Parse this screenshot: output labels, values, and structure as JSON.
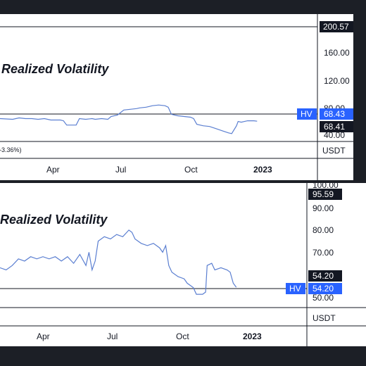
{
  "colors": {
    "line": "#5b7fd1",
    "badge_blue": "#2962ff",
    "badge_black": "#131722",
    "grid": "#131722"
  },
  "chart_data": [
    {
      "type": "line",
      "title": "Realized Volatility",
      "subtitle": "-3.36%)",
      "x_tick_labels": [
        "Apr",
        "Jul",
        "Oct",
        "2023"
      ],
      "y_tick_labels": [
        "160.00",
        "120.00",
        "80.00",
        "40.00"
      ],
      "ylim": [
        40,
        200.57
      ],
      "price_axis_unit": "USDT",
      "badges": [
        {
          "label": "",
          "value": "200.57",
          "style": "black"
        },
        {
          "label": "HV",
          "value": "68.43",
          "style": "blue"
        },
        {
          "label": "",
          "value": "68.41",
          "style": "black"
        }
      ],
      "series": [
        {
          "values": [
            [
              0.0,
              72
            ],
            [
              0.04,
              71
            ],
            [
              0.06,
              73
            ],
            [
              0.08,
              72
            ],
            [
              0.1,
              72
            ],
            [
              0.12,
              71
            ],
            [
              0.14,
              72
            ],
            [
              0.16,
              70
            ],
            [
              0.19,
              70
            ],
            [
              0.2,
              69
            ],
            [
              0.21,
              63
            ],
            [
              0.24,
              63
            ],
            [
              0.25,
              72
            ],
            [
              0.27,
              71
            ],
            [
              0.29,
              72
            ],
            [
              0.3,
              71
            ],
            [
              0.32,
              72
            ],
            [
              0.34,
              71
            ],
            [
              0.35,
              75
            ],
            [
              0.37,
              77
            ],
            [
              0.39,
              84
            ],
            [
              0.41,
              85
            ],
            [
              0.43,
              86
            ],
            [
              0.44,
              87
            ],
            [
              0.46,
              88
            ],
            [
              0.47,
              89
            ],
            [
              0.48,
              90
            ],
            [
              0.5,
              91
            ],
            [
              0.52,
              90
            ],
            [
              0.53,
              88
            ],
            [
              0.54,
              78
            ],
            [
              0.56,
              76
            ],
            [
              0.58,
              75
            ],
            [
              0.6,
              74
            ],
            [
              0.61,
              72
            ],
            [
              0.62,
              64
            ],
            [
              0.64,
              62
            ],
            [
              0.66,
              61
            ],
            [
              0.68,
              58
            ],
            [
              0.7,
              55
            ],
            [
              0.72,
              52
            ],
            [
              0.73,
              51
            ],
            [
              0.745,
              62
            ],
            [
              0.75,
              68
            ],
            [
              0.76,
              67
            ],
            [
              0.77,
              68
            ],
            [
              0.78,
              69
            ],
            [
              0.8,
              69
            ],
            [
              0.81,
              68.4
            ]
          ]
        }
      ]
    },
    {
      "type": "line",
      "title": "Realized Volatility",
      "x_tick_labels": [
        "Apr",
        "Jul",
        "Oct",
        "2023"
      ],
      "y_tick_labels": [
        "100.00",
        "90.00",
        "80.00",
        "70.00",
        "50.00"
      ],
      "ylim": [
        45,
        100
      ],
      "price_axis_unit": "USDT",
      "badges": [
        {
          "label": "",
          "value": "95.59",
          "style": "black"
        },
        {
          "label": "",
          "value": "54.20",
          "style": "black"
        },
        {
          "label": "HV",
          "value": "54.20",
          "style": "blue"
        }
      ],
      "series": [
        {
          "values": [
            [
              0.0,
              63
            ],
            [
              0.02,
              62
            ],
            [
              0.04,
              64
            ],
            [
              0.06,
              67
            ],
            [
              0.08,
              66
            ],
            [
              0.1,
              68
            ],
            [
              0.12,
              67
            ],
            [
              0.14,
              68
            ],
            [
              0.16,
              67
            ],
            [
              0.18,
              68
            ],
            [
              0.2,
              66
            ],
            [
              0.22,
              68
            ],
            [
              0.24,
              65
            ],
            [
              0.26,
              69
            ],
            [
              0.28,
              64
            ],
            [
              0.29,
              70
            ],
            [
              0.3,
              62
            ],
            [
              0.31,
              66
            ],
            [
              0.32,
              75
            ],
            [
              0.34,
              77
            ],
            [
              0.36,
              76
            ],
            [
              0.38,
              78
            ],
            [
              0.4,
              77
            ],
            [
              0.42,
              80
            ],
            [
              0.43,
              79
            ],
            [
              0.44,
              76
            ],
            [
              0.46,
              74
            ],
            [
              0.48,
              73
            ],
            [
              0.5,
              74
            ],
            [
              0.52,
              72
            ],
            [
              0.53,
              70
            ],
            [
              0.54,
              73
            ],
            [
              0.55,
              64
            ],
            [
              0.56,
              61
            ],
            [
              0.58,
              59
            ],
            [
              0.6,
              58
            ],
            [
              0.61,
              56
            ],
            [
              0.63,
              54
            ],
            [
              0.64,
              51
            ],
            [
              0.66,
              51
            ],
            [
              0.67,
              52
            ],
            [
              0.675,
              64
            ],
            [
              0.69,
              65
            ],
            [
              0.7,
              62
            ],
            [
              0.72,
              63
            ],
            [
              0.74,
              62
            ],
            [
              0.75,
              61
            ],
            [
              0.76,
              56
            ],
            [
              0.77,
              54.2
            ]
          ]
        }
      ]
    }
  ]
}
